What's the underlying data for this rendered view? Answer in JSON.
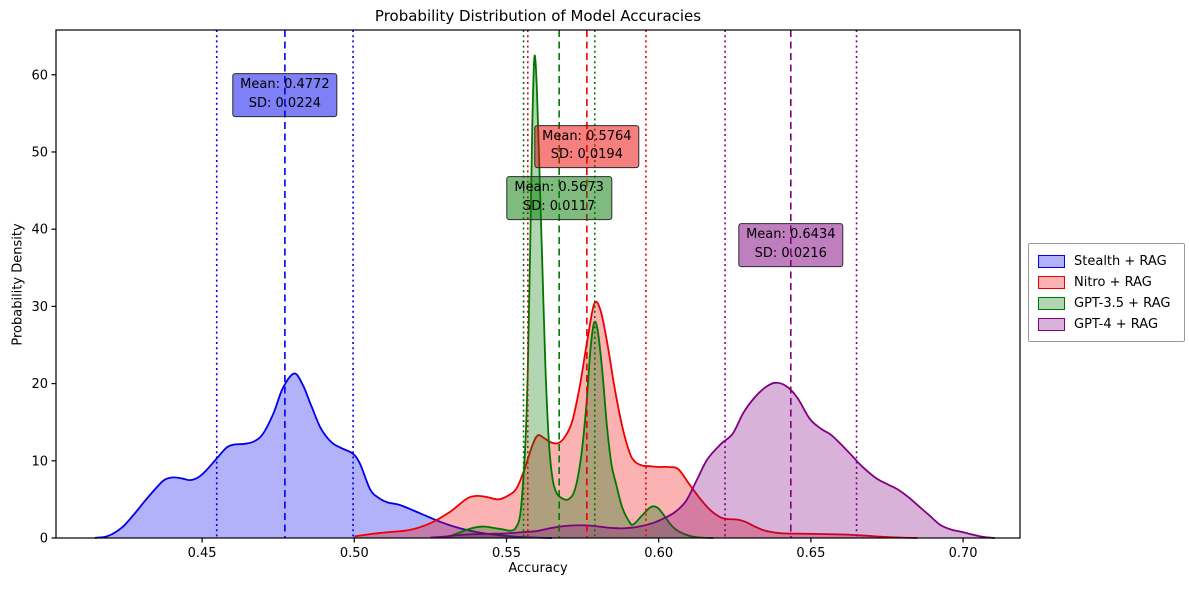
{
  "chart": {
    "title": "Probability Distribution of Model Accuracies",
    "xlabel": "Accuracy",
    "ylabel": "Probability Density"
  },
  "chart_data": {
    "type": "area",
    "kind": "kde-probability-density",
    "title": "Probability Distribution of Model Accuracies",
    "xlabel": "Accuracy",
    "ylabel": "Probability Density",
    "xlim": [
      0.402,
      0.7187
    ],
    "ylim": [
      0,
      65.8
    ],
    "grid": false,
    "legend_position": "center-right-outside",
    "xticks": [
      0.45,
      0.5,
      0.55,
      0.6,
      0.65,
      0.7
    ],
    "xtick_labels": [
      "0.45",
      "0.50",
      "0.55",
      "0.60",
      "0.65",
      "0.70"
    ],
    "yticks": [
      0,
      10,
      20,
      30,
      40,
      50,
      60
    ],
    "ytick_labels": [
      "0",
      "10",
      "20",
      "30",
      "40",
      "50",
      "60"
    ],
    "series": [
      {
        "id": "stealth-rag",
        "name": "Stealth + RAG",
        "color": "#0000ee",
        "mean": 0.4772,
        "sd": 0.0224,
        "annotation": {
          "line1": "Mean: 0.4772",
          "line2": "SD: 0.0224",
          "x": 0.4772,
          "y": 57.4
        },
        "points": [
          [
            0.4148,
            0.02
          ],
          [
            0.419,
            0.25
          ],
          [
            0.4235,
            1.3
          ],
          [
            0.4275,
            3.0
          ],
          [
            0.431,
            4.7
          ],
          [
            0.4345,
            6.3
          ],
          [
            0.4375,
            7.5
          ],
          [
            0.4405,
            7.85
          ],
          [
            0.4435,
            7.7
          ],
          [
            0.446,
            7.5
          ],
          [
            0.4485,
            7.8
          ],
          [
            0.4512,
            8.7
          ],
          [
            0.4548,
            10.3
          ],
          [
            0.458,
            11.7
          ],
          [
            0.4605,
            12.1
          ],
          [
            0.464,
            12.2
          ],
          [
            0.467,
            12.5
          ],
          [
            0.47,
            13.5
          ],
          [
            0.4735,
            16.2
          ],
          [
            0.4765,
            19.4
          ],
          [
            0.4802,
            21.3
          ],
          [
            0.483,
            19.9
          ],
          [
            0.4858,
            17.2
          ],
          [
            0.489,
            14.2
          ],
          [
            0.4925,
            12.4
          ],
          [
            0.496,
            11.6
          ],
          [
            0.4996,
            10.9
          ],
          [
            0.502,
            9.5
          ],
          [
            0.5052,
            6.3
          ],
          [
            0.508,
            5.2
          ],
          [
            0.511,
            4.6
          ],
          [
            0.515,
            4.27
          ],
          [
            0.5216,
            3.2
          ],
          [
            0.5282,
            2.1
          ],
          [
            0.5347,
            1.26
          ],
          [
            0.5413,
            0.69
          ],
          [
            0.5479,
            0.35
          ],
          [
            0.554,
            0.15
          ],
          [
            0.56,
            0.05
          ],
          [
            0.565,
            0.0
          ]
        ]
      },
      {
        "id": "nitro-rag",
        "name": "Nitro + RAG",
        "color": "#ee0000",
        "mean": 0.5764,
        "sd": 0.0194,
        "annotation": {
          "line1": "Mean: 0.5764",
          "line2": "SD: 0.0194",
          "x": 0.5764,
          "y": 50.7
        },
        "points": [
          [
            0.5,
            0.2
          ],
          [
            0.5052,
            0.5
          ],
          [
            0.511,
            0.75
          ],
          [
            0.5183,
            1.05
          ],
          [
            0.5249,
            1.9
          ],
          [
            0.5315,
            3.4
          ],
          [
            0.537,
            5.1
          ],
          [
            0.5403,
            5.45
          ],
          [
            0.5437,
            5.3
          ],
          [
            0.5474,
            5.0
          ],
          [
            0.551,
            5.6
          ],
          [
            0.5534,
            6.5
          ],
          [
            0.556,
            9.0
          ],
          [
            0.5585,
            12.0
          ],
          [
            0.5603,
            13.3
          ],
          [
            0.5625,
            12.9
          ],
          [
            0.5648,
            12.35
          ],
          [
            0.567,
            12.3
          ],
          [
            0.569,
            13.0
          ],
          [
            0.5715,
            15.0
          ],
          [
            0.574,
            19.5
          ],
          [
            0.5765,
            25.5
          ],
          [
            0.5788,
            30.3
          ],
          [
            0.5808,
            29.6
          ],
          [
            0.583,
            25.5
          ],
          [
            0.5855,
            19.5
          ],
          [
            0.588,
            14.5
          ],
          [
            0.5905,
            11.0
          ],
          [
            0.5922,
            9.9
          ],
          [
            0.5945,
            9.4
          ],
          [
            0.597,
            9.3
          ],
          [
            0.6,
            9.2
          ],
          [
            0.6035,
            9.2
          ],
          [
            0.6065,
            8.9
          ],
          [
            0.61,
            7.0
          ],
          [
            0.6136,
            5.1
          ],
          [
            0.617,
            3.6
          ],
          [
            0.6202,
            2.7
          ],
          [
            0.6228,
            2.45
          ],
          [
            0.6257,
            2.4
          ],
          [
            0.6285,
            2.1
          ],
          [
            0.631,
            1.6
          ],
          [
            0.6345,
            1.0
          ],
          [
            0.6377,
            0.74
          ],
          [
            0.641,
            0.6
          ],
          [
            0.648,
            0.55
          ],
          [
            0.655,
            0.5
          ],
          [
            0.661,
            0.45
          ],
          [
            0.668,
            0.3
          ],
          [
            0.674,
            0.15
          ],
          [
            0.68,
            0.05
          ],
          [
            0.685,
            0.0
          ]
        ]
      },
      {
        "id": "gpt35-rag",
        "name": "GPT-3.5 + RAG",
        "color": "#007700",
        "mean": 0.5673,
        "sd": 0.0117,
        "annotation": {
          "line1": "Mean: 0.5673",
          "line2": "SD: 0.0117",
          "x": 0.5673,
          "y": 44.0
        },
        "points": [
          [
            0.528,
            0.05
          ],
          [
            0.531,
            0.2
          ],
          [
            0.5345,
            0.7
          ],
          [
            0.538,
            1.2
          ],
          [
            0.541,
            1.45
          ],
          [
            0.543,
            1.47
          ],
          [
            0.546,
            1.3
          ],
          [
            0.549,
            1.1
          ],
          [
            0.5512,
            0.95
          ],
          [
            0.553,
            1.3
          ],
          [
            0.5545,
            3.0
          ],
          [
            0.5556,
            8.0
          ],
          [
            0.5563,
            13.0
          ],
          [
            0.557,
            22.0
          ],
          [
            0.5578,
            38.0
          ],
          [
            0.5585,
            54.0
          ],
          [
            0.5592,
            62.4
          ],
          [
            0.56,
            58.0
          ],
          [
            0.5608,
            48.0
          ],
          [
            0.5618,
            35.0
          ],
          [
            0.5628,
            22.0
          ],
          [
            0.564,
            12.0
          ],
          [
            0.5652,
            7.5
          ],
          [
            0.5665,
            5.8
          ],
          [
            0.568,
            5.2
          ],
          [
            0.5703,
            5.0
          ],
          [
            0.5725,
            6.3
          ],
          [
            0.5745,
            10.5
          ],
          [
            0.5762,
            17.0
          ],
          [
            0.5776,
            24.5
          ],
          [
            0.5788,
            27.9
          ],
          [
            0.58,
            26.8
          ],
          [
            0.5815,
            21.5
          ],
          [
            0.583,
            14.5
          ],
          [
            0.5845,
            9.5
          ],
          [
            0.586,
            7.0
          ],
          [
            0.588,
            4.0
          ],
          [
            0.5905,
            2.0
          ],
          [
            0.5918,
            1.8
          ],
          [
            0.5945,
            2.9
          ],
          [
            0.597,
            3.9
          ],
          [
            0.5985,
            4.1
          ],
          [
            0.6,
            3.8
          ],
          [
            0.602,
            2.8
          ],
          [
            0.604,
            1.7
          ],
          [
            0.606,
            1.0
          ],
          [
            0.6085,
            0.5
          ],
          [
            0.611,
            0.2
          ],
          [
            0.614,
            0.05
          ],
          [
            0.618,
            0.0
          ]
        ]
      },
      {
        "id": "gpt4-rag",
        "name": "GPT-4 + RAG",
        "color": "#800080",
        "mean": 0.6434,
        "sd": 0.0216,
        "annotation": {
          "line1": "Mean: 0.6434",
          "line2": "SD: 0.0216",
          "x": 0.6434,
          "y": 37.9
        },
        "points": [
          [
            0.525,
            0.05
          ],
          [
            0.53,
            0.2
          ],
          [
            0.535,
            0.4
          ],
          [
            0.54,
            0.5
          ],
          [
            0.545,
            0.55
          ],
          [
            0.55,
            0.6
          ],
          [
            0.555,
            0.75
          ],
          [
            0.56,
            0.9
          ],
          [
            0.5635,
            1.2
          ],
          [
            0.567,
            1.45
          ],
          [
            0.5705,
            1.6
          ],
          [
            0.574,
            1.65
          ],
          [
            0.5775,
            1.6
          ],
          [
            0.581,
            1.45
          ],
          [
            0.5845,
            1.3
          ],
          [
            0.588,
            1.25
          ],
          [
            0.5915,
            1.35
          ],
          [
            0.595,
            1.6
          ],
          [
            0.5985,
            2.0
          ],
          [
            0.602,
            2.6
          ],
          [
            0.6055,
            3.4
          ],
          [
            0.609,
            4.8
          ],
          [
            0.6125,
            7.5
          ],
          [
            0.616,
            10.2
          ],
          [
            0.6205,
            12.2
          ],
          [
            0.6243,
            13.5
          ],
          [
            0.6278,
            16.2
          ],
          [
            0.6315,
            18.2
          ],
          [
            0.635,
            19.5
          ],
          [
            0.6382,
            20.1
          ],
          [
            0.6418,
            19.7
          ],
          [
            0.6455,
            18.2
          ],
          [
            0.6497,
            15.4
          ],
          [
            0.6535,
            14.1
          ],
          [
            0.6565,
            13.4
          ],
          [
            0.66,
            12.1
          ],
          [
            0.6634,
            10.7
          ],
          [
            0.667,
            9.2
          ],
          [
            0.6716,
            7.7
          ],
          [
            0.6755,
            6.9
          ],
          [
            0.6785,
            6.3
          ],
          [
            0.682,
            5.3
          ],
          [
            0.6855,
            4.1
          ],
          [
            0.689,
            2.9
          ],
          [
            0.6925,
            1.7
          ],
          [
            0.696,
            1.1
          ],
          [
            0.7,
            0.75
          ],
          [
            0.7035,
            0.4
          ],
          [
            0.707,
            0.12
          ],
          [
            0.7105,
            0.0
          ]
        ]
      }
    ]
  }
}
